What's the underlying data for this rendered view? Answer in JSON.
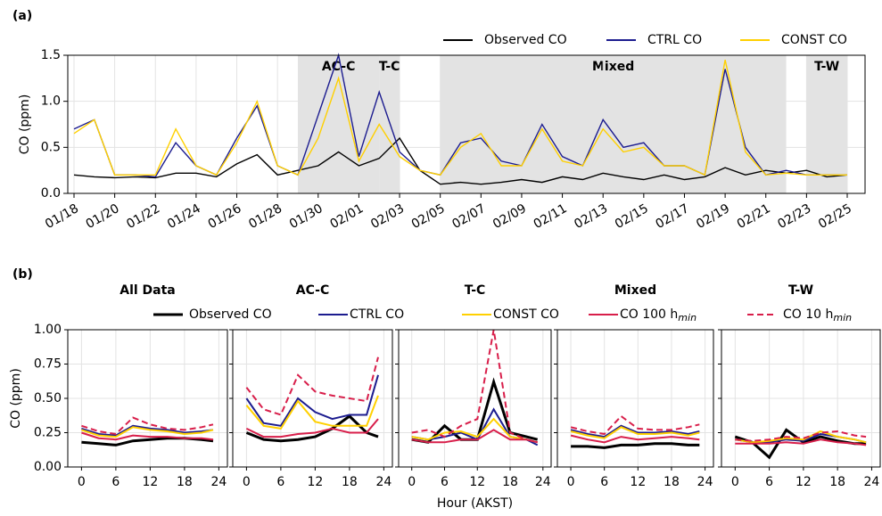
{
  "chart_data": [
    {
      "type": "line",
      "panel_label": "(a)",
      "y_label": "CO (ppm)",
      "categories": [
        "01/18",
        null,
        "01/20",
        null,
        "01/22",
        null,
        "01/24",
        null,
        "01/26",
        null,
        "01/28",
        null,
        "01/30",
        null,
        "02/01",
        null,
        "02/03",
        null,
        "02/05",
        null,
        "02/07",
        null,
        "02/09",
        null,
        "02/11",
        null,
        "02/13",
        null,
        "02/15",
        null,
        "02/17",
        null,
        "02/19",
        null,
        "02/21",
        null,
        "02/23",
        null,
        "02/25"
      ],
      "series": [
        {
          "name": "Observed CO",
          "color": "#000000",
          "values": [
            0.2,
            0.18,
            0.17,
            0.18,
            0.17,
            0.22,
            0.22,
            0.18,
            0.32,
            0.42,
            0.2,
            0.25,
            0.3,
            0.45,
            0.3,
            0.38,
            0.6,
            0.25,
            0.1,
            0.12,
            0.1,
            0.12,
            0.15,
            0.12,
            0.18,
            0.15,
            0.22,
            0.18,
            0.15,
            0.2,
            0.15,
            0.18,
            0.28,
            0.2,
            0.25,
            0.22,
            0.25,
            0.18,
            0.2
          ]
        },
        {
          "name": "CTRL CO",
          "color": "#1c1c8f",
          "values": [
            0.7,
            0.8,
            0.2,
            0.2,
            0.18,
            0.55,
            0.3,
            0.2,
            0.6,
            0.95,
            0.3,
            0.2,
            0.85,
            1.5,
            0.4,
            1.1,
            0.45,
            0.25,
            0.2,
            0.55,
            0.6,
            0.35,
            0.3,
            0.75,
            0.4,
            0.3,
            0.8,
            0.5,
            0.55,
            0.3,
            0.3,
            0.2,
            1.35,
            0.5,
            0.2,
            0.25,
            0.2,
            0.2,
            0.2
          ]
        },
        {
          "name": "CONST CO",
          "color": "#ffd000",
          "values": [
            0.65,
            0.8,
            0.2,
            0.2,
            0.2,
            0.7,
            0.3,
            0.2,
            0.55,
            1.0,
            0.3,
            0.2,
            0.6,
            1.25,
            0.35,
            0.75,
            0.4,
            0.25,
            0.2,
            0.5,
            0.65,
            0.3,
            0.3,
            0.7,
            0.35,
            0.3,
            0.7,
            0.45,
            0.5,
            0.3,
            0.3,
            0.2,
            1.45,
            0.45,
            0.2,
            0.22,
            0.2,
            0.2,
            0.2
          ]
        }
      ],
      "regions": [
        {
          "label": "AC-C",
          "start": "01/29",
          "end": "02/02"
        },
        {
          "label": "T-C",
          "start": "02/02",
          "end": "02/03"
        },
        {
          "label": "Mixed",
          "start": "02/05",
          "end": "02/22"
        },
        {
          "label": "T-W",
          "start": "02/23",
          "end": "02/25"
        }
      ],
      "ylim": [
        0,
        1.5
      ],
      "yticks": [
        {
          "value": 0,
          "label": "0.0"
        },
        {
          "value": 0.5,
          "label": "0.5"
        },
        {
          "value": 1.0,
          "label": "1.0"
        },
        {
          "value": 1.5,
          "label": "1.5"
        }
      ],
      "grid": true,
      "legend": "top-right"
    },
    {
      "type": "line",
      "panel_label": "(b)",
      "title": "All Data",
      "y_label": "CO (ppm)",
      "x": [
        0,
        3,
        6,
        9,
        12,
        15,
        18,
        21,
        23
      ],
      "xlim": [
        -2.4,
        25.5
      ],
      "xticks": [
        0,
        6,
        12,
        18,
        24
      ],
      "ylim": [
        0,
        1
      ],
      "yticks": [
        {
          "value": 0,
          "label": "0.00"
        },
        {
          "value": 0.25,
          "label": "0.25"
        },
        {
          "value": 0.5,
          "label": "0.50"
        },
        {
          "value": 0.75,
          "label": "0.75"
        },
        {
          "value": 1,
          "label": "1.00"
        }
      ],
      "grid": true,
      "legend": "top",
      "series": [
        {
          "name": "Observed CO",
          "color": "#000000",
          "width": 3,
          "values": [
            0.18,
            0.17,
            0.16,
            0.19,
            0.2,
            0.21,
            0.21,
            0.2,
            0.19
          ]
        },
        {
          "name": "CTRL CO",
          "color": "#1c1c8f",
          "values": [
            0.28,
            0.24,
            0.23,
            0.3,
            0.28,
            0.27,
            0.25,
            0.26,
            0.27
          ]
        },
        {
          "name": "CONST CO",
          "color": "#ffd000",
          "values": [
            0.27,
            0.23,
            0.22,
            0.29,
            0.27,
            0.26,
            0.24,
            0.25,
            0.27
          ]
        },
        {
          "name": "CO 100 h",
          "name_sub": "min",
          "color": "#d81e4a",
          "values": [
            0.25,
            0.21,
            0.2,
            0.23,
            0.22,
            0.22,
            0.21,
            0.21,
            0.2
          ]
        },
        {
          "name": "CO 10 h",
          "name_sub": "min",
          "color": "#d81e4a",
          "dashed": true,
          "values": [
            0.3,
            0.26,
            0.24,
            0.36,
            0.31,
            0.28,
            0.27,
            0.29,
            0.31
          ]
        }
      ]
    },
    {
      "type": "line",
      "title": "AC-C",
      "x": [
        0,
        3,
        6,
        9,
        12,
        15,
        18,
        21,
        23
      ],
      "xlim": [
        -2.4,
        25.5
      ],
      "xticks": [
        0,
        6,
        12,
        18,
        24
      ],
      "series": [
        {
          "color": "#000000",
          "width": 3,
          "values": [
            0.25,
            0.2,
            0.19,
            0.2,
            0.22,
            0.28,
            0.37,
            0.25,
            0.22
          ]
        },
        {
          "color": "#1c1c8f",
          "values": [
            0.5,
            0.32,
            0.3,
            0.5,
            0.4,
            0.35,
            0.38,
            0.38,
            0.67
          ]
        },
        {
          "color": "#ffd000",
          "values": [
            0.45,
            0.3,
            0.28,
            0.48,
            0.33,
            0.3,
            0.3,
            0.3,
            0.52
          ]
        },
        {
          "color": "#d81e4a",
          "values": [
            0.28,
            0.22,
            0.22,
            0.24,
            0.25,
            0.28,
            0.25,
            0.25,
            0.35
          ]
        },
        {
          "color": "#d81e4a",
          "dashed": true,
          "values": [
            0.58,
            0.42,
            0.38,
            0.67,
            0.55,
            0.52,
            0.5,
            0.48,
            0.8
          ]
        }
      ]
    },
    {
      "type": "line",
      "title": "T-C",
      "x_label": "Hour (AKST)",
      "x": [
        0,
        3,
        6,
        9,
        12,
        15,
        18,
        21,
        23
      ],
      "xlim": [
        -2.4,
        25.5
      ],
      "xticks": [
        0,
        6,
        12,
        18,
        24
      ],
      "series": [
        {
          "color": "#000000",
          "width": 3,
          "values": [
            0.2,
            0.18,
            0.3,
            0.2,
            0.2,
            0.62,
            0.25,
            0.22,
            0.2
          ]
        },
        {
          "color": "#1c1c8f",
          "values": [
            0.22,
            0.2,
            0.22,
            0.25,
            0.2,
            0.42,
            0.22,
            0.2,
            0.16
          ]
        },
        {
          "color": "#ffd000",
          "values": [
            0.22,
            0.2,
            0.25,
            0.26,
            0.22,
            0.35,
            0.22,
            0.2,
            0.18
          ]
        },
        {
          "color": "#d81e4a",
          "values": [
            0.2,
            0.18,
            0.18,
            0.2,
            0.2,
            0.27,
            0.2,
            0.2,
            0.18
          ]
        },
        {
          "color": "#d81e4a",
          "dashed": true,
          "values": [
            0.25,
            0.27,
            0.22,
            0.3,
            0.35,
            1.0,
            0.25,
            0.2,
            0.18
          ]
        }
      ]
    },
    {
      "type": "line",
      "title": "Mixed",
      "x": [
        0,
        3,
        6,
        9,
        12,
        15,
        18,
        21,
        23
      ],
      "xlim": [
        -2.4,
        25.5
      ],
      "xticks": [
        0,
        6,
        12,
        18,
        24
      ],
      "series": [
        {
          "color": "#000000",
          "width": 3,
          "values": [
            0.15,
            0.15,
            0.14,
            0.16,
            0.16,
            0.17,
            0.17,
            0.16,
            0.16
          ]
        },
        {
          "color": "#1c1c8f",
          "values": [
            0.27,
            0.24,
            0.22,
            0.3,
            0.25,
            0.25,
            0.26,
            0.24,
            0.26
          ]
        },
        {
          "color": "#ffd000",
          "values": [
            0.26,
            0.23,
            0.21,
            0.29,
            0.24,
            0.24,
            0.25,
            0.23,
            0.25
          ]
        },
        {
          "color": "#d81e4a",
          "values": [
            0.23,
            0.2,
            0.18,
            0.22,
            0.2,
            0.21,
            0.22,
            0.21,
            0.2
          ]
        },
        {
          "color": "#d81e4a",
          "dashed": true,
          "values": [
            0.29,
            0.26,
            0.24,
            0.37,
            0.28,
            0.27,
            0.27,
            0.29,
            0.31
          ]
        }
      ]
    },
    {
      "type": "line",
      "title": "T-W",
      "x": [
        0,
        3,
        6,
        9,
        12,
        15,
        18,
        21,
        23
      ],
      "xlim": [
        -2.4,
        25.5
      ],
      "xticks": [
        0,
        6,
        12,
        18,
        24
      ],
      "series": [
        {
          "color": "#000000",
          "width": 3,
          "values": [
            0.22,
            0.18,
            0.07,
            0.27,
            0.18,
            0.22,
            0.19,
            0.17,
            0.17
          ]
        },
        {
          "color": "#1c1c8f",
          "values": [
            0.2,
            0.18,
            0.18,
            0.2,
            0.19,
            0.24,
            0.22,
            0.2,
            0.18
          ]
        },
        {
          "color": "#ffd000",
          "values": [
            0.2,
            0.18,
            0.19,
            0.21,
            0.2,
            0.26,
            0.22,
            0.2,
            0.18
          ]
        },
        {
          "color": "#d81e4a",
          "values": [
            0.17,
            0.17,
            0.17,
            0.18,
            0.17,
            0.2,
            0.18,
            0.17,
            0.16
          ]
        },
        {
          "color": "#d81e4a",
          "dashed": true,
          "values": [
            0.2,
            0.19,
            0.2,
            0.22,
            0.21,
            0.25,
            0.26,
            0.23,
            0.22
          ]
        }
      ]
    }
  ]
}
